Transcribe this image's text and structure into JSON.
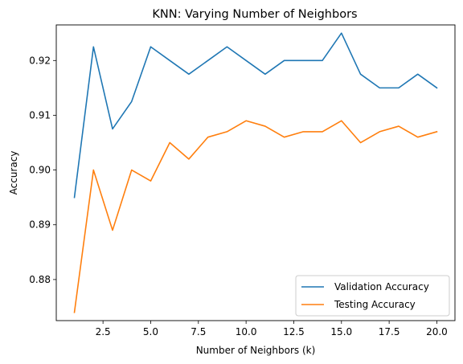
{
  "chart_data": {
    "type": "line",
    "title": "KNN: Varying Number of Neighbors",
    "xlabel": "Number of Neighbors (k)",
    "ylabel": "Accuracy",
    "xlim": [
      0.05,
      20.95
    ],
    "ylim": [
      0.8725,
      0.9265
    ],
    "xticks": [
      2.5,
      5.0,
      7.5,
      10.0,
      12.5,
      15.0,
      17.5,
      20.0
    ],
    "xtick_labels": [
      "2.5",
      "5.0",
      "7.5",
      "10.0",
      "12.5",
      "15.0",
      "17.5",
      "20.0"
    ],
    "yticks": [
      0.88,
      0.89,
      0.9,
      0.91,
      0.92
    ],
    "ytick_labels": [
      "0.88",
      "0.89",
      "0.90",
      "0.91",
      "0.92"
    ],
    "grid": false,
    "legend_position": "lower-right",
    "x": [
      1,
      2,
      3,
      4,
      5,
      6,
      7,
      8,
      9,
      10,
      11,
      12,
      13,
      14,
      15,
      16,
      17,
      18,
      19,
      20
    ],
    "series": [
      {
        "name": "Validation Accuracy",
        "color": "#1f77b4",
        "values": [
          0.895,
          0.9225,
          0.9075,
          0.9125,
          0.9225,
          0.92,
          0.9175,
          0.92,
          0.9225,
          0.92,
          0.9175,
          0.92,
          0.92,
          0.92,
          0.925,
          0.9175,
          0.915,
          0.915,
          0.9175,
          0.915
        ]
      },
      {
        "name": "Testing Accuracy",
        "color": "#ff7f0e",
        "values": [
          0.874,
          0.9,
          0.889,
          0.9,
          0.898,
          0.905,
          0.902,
          0.906,
          0.907,
          0.909,
          0.908,
          0.906,
          0.907,
          0.907,
          0.909,
          0.905,
          0.907,
          0.908,
          0.906,
          0.907
        ]
      }
    ]
  }
}
